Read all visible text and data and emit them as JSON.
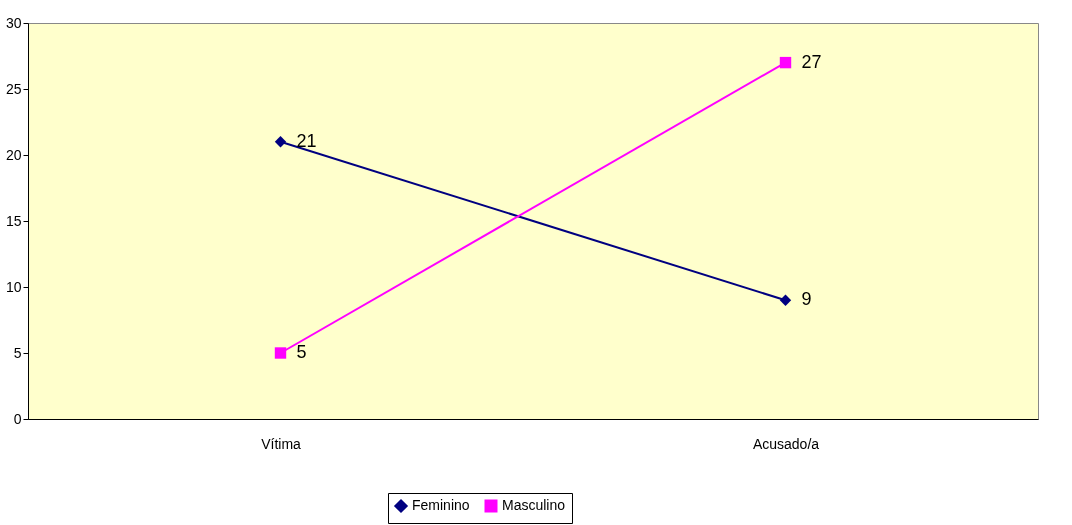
{
  "chart_data": {
    "type": "line",
    "categories": [
      "Vítima",
      "Acusado/a"
    ],
    "series": [
      {
        "name": "Feminino",
        "color": "#000080",
        "values": [
          21,
          9
        ],
        "marker": "diamond"
      },
      {
        "name": "Masculino",
        "color": "#ff00ff",
        "values": [
          5,
          27
        ],
        "marker": "square"
      }
    ],
    "ylim": [
      0,
      30
    ],
    "yticks": [
      0,
      5,
      10,
      15,
      20,
      25,
      30
    ],
    "grid": false,
    "legend": "bottom",
    "data_labels": true,
    "line_style": "solid"
  }
}
